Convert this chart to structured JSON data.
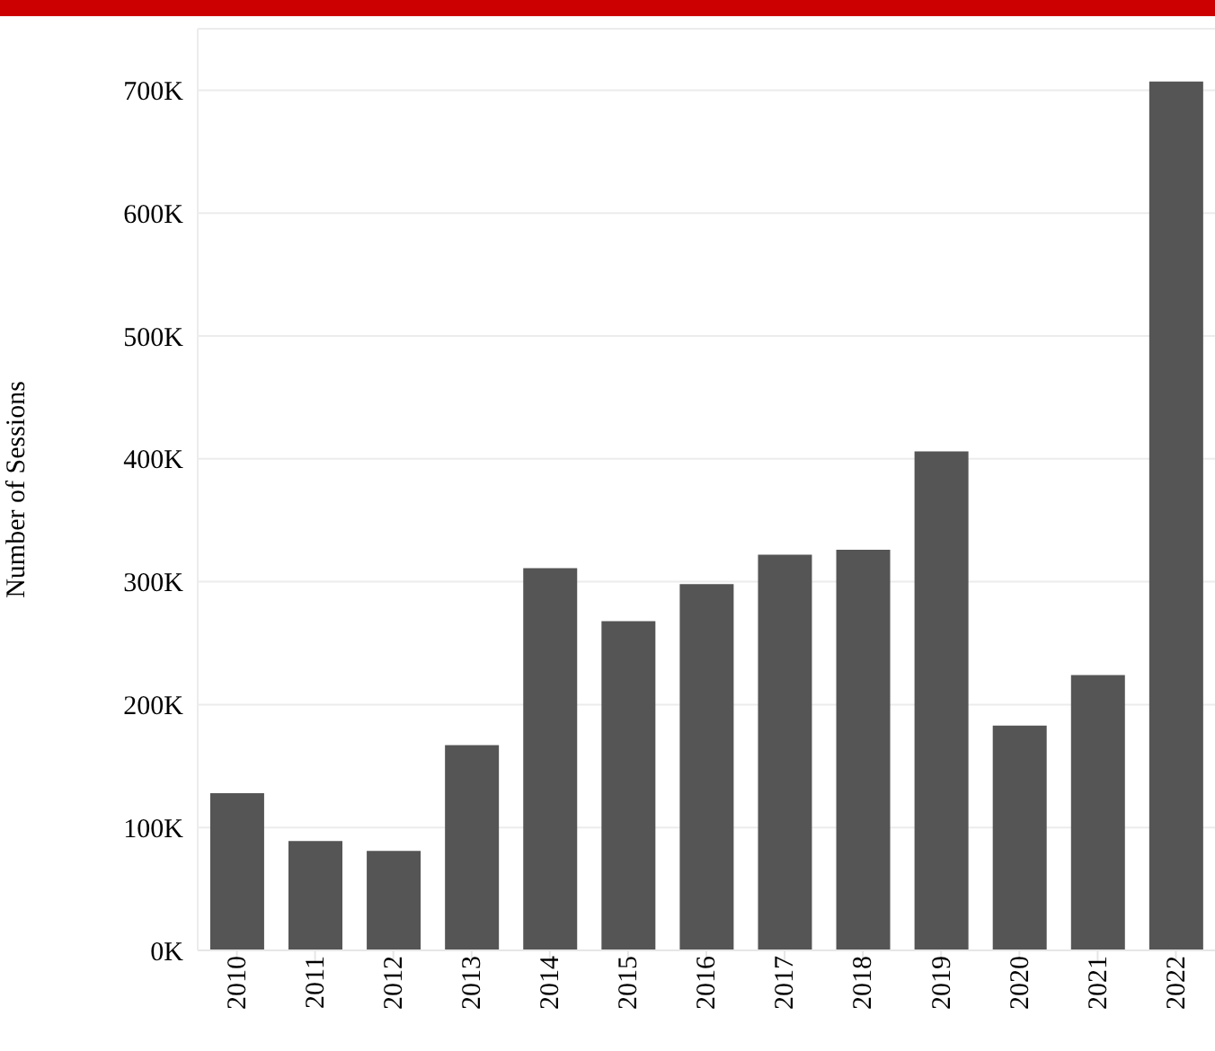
{
  "chart_data": {
    "type": "bar",
    "ylabel": "Number of Sessions",
    "categories": [
      "2010",
      "2011",
      "2012",
      "2013",
      "2014",
      "2015",
      "2016",
      "2017",
      "2018",
      "2019",
      "2020",
      "2021",
      "2022"
    ],
    "values": [
      128000,
      89000,
      81000,
      167000,
      311000,
      268000,
      298000,
      322000,
      326000,
      406000,
      183000,
      224000,
      707000
    ],
    "color": "#555555",
    "ylim": [
      0,
      750000
    ],
    "yticks": [
      {
        "value": 0,
        "label": "0K"
      },
      {
        "value": 100000,
        "label": "100K"
      },
      {
        "value": 200000,
        "label": "200K"
      },
      {
        "value": 300000,
        "label": "300K"
      },
      {
        "value": 400000,
        "label": "400K"
      },
      {
        "value": 500000,
        "label": "500K"
      },
      {
        "value": 600000,
        "label": "600K"
      },
      {
        "value": 700000,
        "label": "700K"
      }
    ],
    "grid": "y"
  }
}
